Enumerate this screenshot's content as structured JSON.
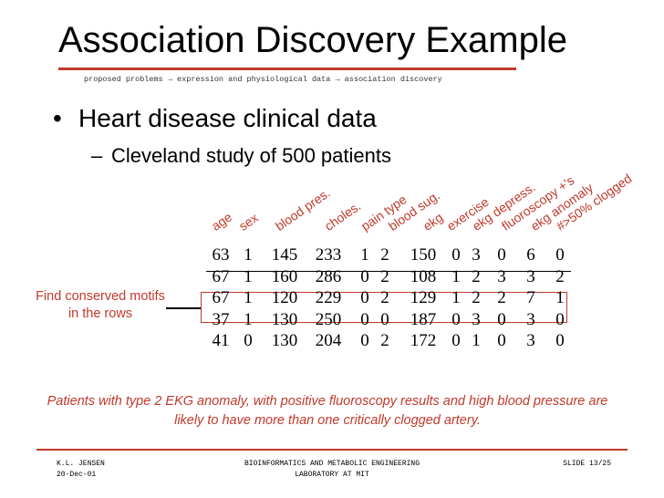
{
  "slide": {
    "title": "Association Discovery Example",
    "breadcrumb": "proposed problems → expression and physiological data → association discovery"
  },
  "bullets": {
    "main": "Heart disease clinical data",
    "sub": "Cleveland study of 500 patients",
    "dot": "•",
    "dash": "–"
  },
  "table": {
    "columns": [
      "age",
      "sex",
      "blood pres.",
      "choles.",
      "pain type",
      "blood sug.",
      "ekg",
      "exercise",
      "ekg depress.",
      "fluoroscopy +'s",
      "ekg anomaly",
      "#>50% clogged"
    ],
    "rows": [
      [
        "63",
        "1",
        "145",
        "233",
        "1",
        "2",
        "150",
        "0",
        "3",
        "0",
        "6",
        "0"
      ],
      [
        "67",
        "1",
        "160",
        "286",
        "0",
        "2",
        "108",
        "1",
        "2",
        "3",
        "3",
        "2"
      ],
      [
        "67",
        "1",
        "120",
        "229",
        "0",
        "2",
        "129",
        "1",
        "2",
        "2",
        "7",
        "1"
      ],
      [
        "37",
        "1",
        "130",
        "250",
        "0",
        "0",
        "187",
        "0",
        "3",
        "0",
        "3",
        "0"
      ],
      [
        "41",
        "0",
        "130",
        "204",
        "0",
        "2",
        "172",
        "0",
        "1",
        "0",
        "3",
        "0"
      ]
    ],
    "highlighted_row": 2
  },
  "callout": "Find conserved motifs in the rows",
  "conclusion": "Patients with type 2 EKG anomaly, with positive fluoroscopy results and high blood pressure are likely to have more than one critically clogged artery.",
  "footer": {
    "author": "K.L. JENSEN",
    "date": "20-Dec-01",
    "lab_line1": "BIOINFORMATICS AND METABOLIC ENGINEERING",
    "lab_line2": "LABORATORY AT MIT",
    "slide_number": "SLIDE 13/25"
  },
  "colors": {
    "accent": "#c0392b",
    "text": "#000000"
  }
}
